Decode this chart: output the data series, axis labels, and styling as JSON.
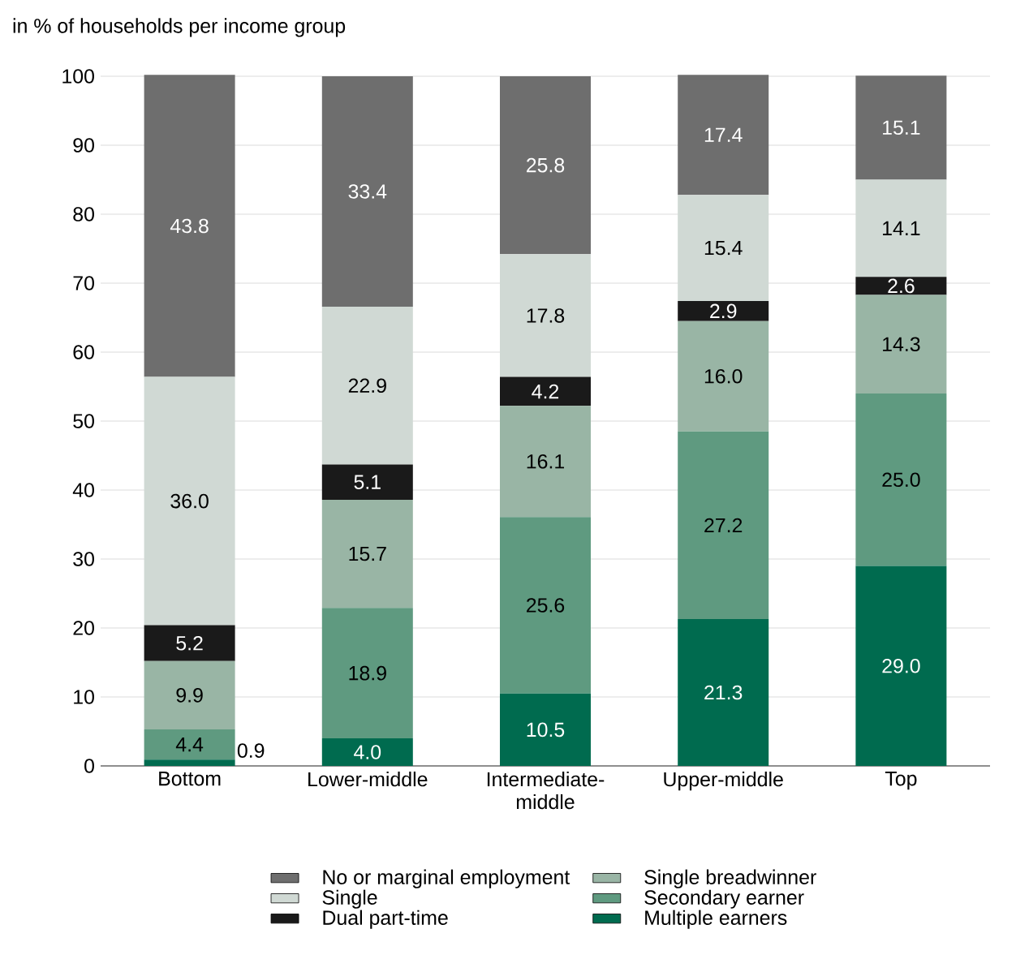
{
  "chart_data": {
    "type": "bar",
    "stacked": true,
    "ylabel": "in % of households per income group",
    "categories": [
      "Bottom",
      "Lower-middle",
      "Intermediate-middle",
      "Upper-middle",
      "Top"
    ],
    "series": [
      {
        "name": "Multiple earners",
        "color": "#006b4f",
        "values": [
          0.9,
          4.0,
          10.5,
          21.3,
          29.0
        ],
        "value_labels": [
          "0.9",
          "4.0",
          "10.5",
          "21.3",
          "29.0"
        ]
      },
      {
        "name": "Secondary earner",
        "color": "#5f9a80",
        "values": [
          4.4,
          18.9,
          25.6,
          27.2,
          25.0
        ],
        "value_labels": [
          "4.4",
          "18.9",
          "25.6",
          "27.2",
          "25.0"
        ]
      },
      {
        "name": "Single breadwinner",
        "color": "#99b5a5",
        "values": [
          9.9,
          15.7,
          16.1,
          16.0,
          14.3
        ],
        "value_labels": [
          "9.9",
          "15.7",
          "16.1",
          "16.0",
          "14.3"
        ]
      },
      {
        "name": "Dual part-time",
        "color": "#1a1a1a",
        "values": [
          5.2,
          5.1,
          4.2,
          2.9,
          2.6
        ],
        "value_labels": [
          "5.2",
          "5.1",
          "4.2",
          "2.9",
          "2.6"
        ]
      },
      {
        "name": "Single",
        "color": "#d0d9d4",
        "values": [
          36.0,
          22.9,
          17.8,
          15.4,
          14.1
        ],
        "value_labels": [
          "36.0",
          "22.9",
          "17.8",
          "15.4",
          "14.1"
        ]
      },
      {
        "name": "No or marginal employment",
        "color": "#6e6e6e",
        "values": [
          43.8,
          33.4,
          25.8,
          17.4,
          15.1
        ],
        "value_labels": [
          "43.8",
          "33.4",
          "25.8",
          "17.4",
          "15.1"
        ]
      }
    ],
    "ylim": [
      0,
      100
    ],
    "yticks": [
      0,
      10,
      20,
      30,
      40,
      50,
      60,
      70,
      80,
      90,
      100
    ],
    "grid": "y",
    "legend": "bottom"
  }
}
